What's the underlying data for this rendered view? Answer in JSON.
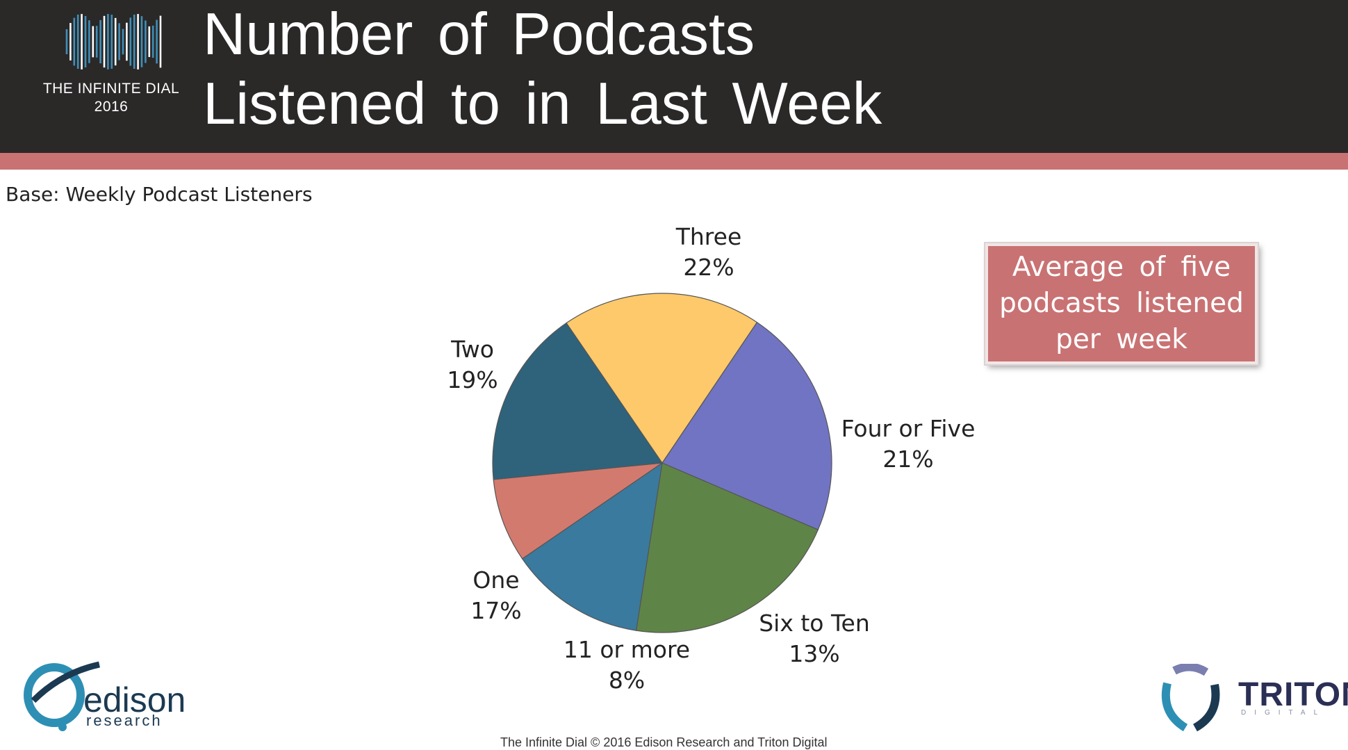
{
  "header": {
    "title_line1": "Number of Podcasts",
    "title_line2": "Listened to in Last Week",
    "dial_label_line1": "THE INFINITE DIAL",
    "dial_label_line2": "2016"
  },
  "base_note": "Base: Weekly Podcast Listeners",
  "callout": {
    "text": "Average of five podcasts listened per week"
  },
  "chart_data": {
    "type": "pie",
    "title": "Number of Podcasts Listened to in Last Week",
    "slices": [
      {
        "label": "Three",
        "value": 22,
        "value_label": "22%",
        "color": "#7174c3"
      },
      {
        "label": "Four or Five",
        "value": 21,
        "value_label": "21%",
        "color": "#5f8448"
      },
      {
        "label": "Six to Ten",
        "value": 13,
        "value_label": "13%",
        "color": "#3a7a9e"
      },
      {
        "label": "11 or more",
        "value": 8,
        "value_label": "8%",
        "color": "#d37a6e"
      },
      {
        "label": "One",
        "value": 17,
        "value_label": "17%",
        "color": "#2e637b"
      },
      {
        "label": "Two",
        "value": 19,
        "value_label": "19%",
        "color": "#fdc96b"
      }
    ],
    "start_angle_deg": 34
  },
  "logos": {
    "edison_name": "edison",
    "edison_sub": "research",
    "triton_name": "TRITON",
    "triton_sub": "DIGITAL"
  },
  "footer": "The Infinite Dial   © 2016 Edison Research and Triton Digital",
  "colors": {
    "header_bg": "#2b2828",
    "accent": "#c97273",
    "logo_blue": "#3f8fb8"
  }
}
